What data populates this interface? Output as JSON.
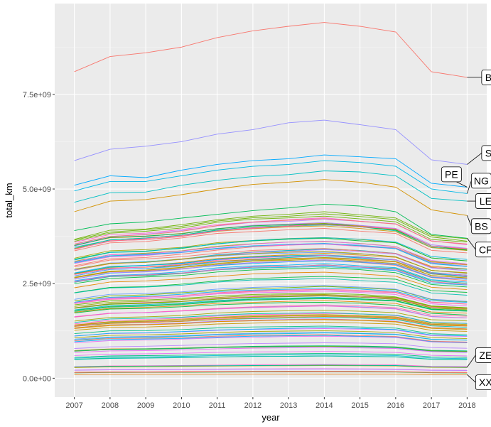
{
  "chart_data": {
    "type": "line",
    "title": "",
    "xlabel": "year",
    "ylabel": "total_km",
    "x": [
      2007,
      2008,
      2009,
      2010,
      2011,
      2012,
      2013,
      2014,
      2015,
      2016,
      2017,
      2018
    ],
    "x_ticks": [
      "2007",
      "2008",
      "2009",
      "2010",
      "2011",
      "2012",
      "2013",
      "2014",
      "2015",
      "2016",
      "2017",
      "2018"
    ],
    "y_ticks": [
      {
        "value": 0,
        "label": "0.0e+00"
      },
      {
        "value": 2500000000,
        "label": "2.5e+09"
      },
      {
        "value": 5000000000,
        "label": "5.0e+09"
      },
      {
        "value": 7500000000,
        "label": "7.5e+09"
      }
    ],
    "xlim": [
      2006.45,
      2018.55
    ],
    "ylim": [
      -500000000,
      9900000000
    ],
    "grid": true,
    "legend": "none",
    "labeled_series": [
      {
        "name": "B",
        "color": "#f8766d",
        "values": [
          8100000000,
          8500000000,
          8600000000,
          8750000000,
          9000000000,
          9180000000,
          9300000000,
          9400000000,
          9300000000,
          9150000000,
          8100000000,
          7950000000
        ]
      },
      {
        "name": "S",
        "color": "#9590ff",
        "values": [
          5750000000,
          6050000000,
          6130000000,
          6250000000,
          6450000000,
          6570000000,
          6750000000,
          6820000000,
          6700000000,
          6570000000,
          5770000000,
          5650000000
        ]
      },
      {
        "name": "PE",
        "color": "#00a9ff",
        "values": [
          5100000000,
          5350000000,
          5300000000,
          5500000000,
          5650000000,
          5750000000,
          5800000000,
          5900000000,
          5850000000,
          5800000000,
          5150000000,
          5050000000
        ]
      },
      {
        "name": "NG",
        "color": "#00b8e7",
        "values": [
          4950000000,
          5200000000,
          5200000000,
          5350000000,
          5500000000,
          5600000000,
          5650000000,
          5750000000,
          5700000000,
          5600000000,
          5000000000,
          4880000000
        ]
      },
      {
        "name": "LE",
        "color": "#00bfc4",
        "values": [
          4650000000,
          4900000000,
          4920000000,
          5100000000,
          5230000000,
          5330000000,
          5380000000,
          5480000000,
          5450000000,
          5350000000,
          4750000000,
          4680000000
        ]
      },
      {
        "name": "BS",
        "color": "#d39200",
        "values": [
          4400000000,
          4680000000,
          4720000000,
          4850000000,
          5000000000,
          5120000000,
          5180000000,
          5250000000,
          5180000000,
          5050000000,
          4450000000,
          4300000000
        ]
      },
      {
        "name": "CF",
        "color": "#00bc56",
        "values": [
          3900000000,
          4080000000,
          4130000000,
          4230000000,
          4330000000,
          4430000000,
          4500000000,
          4600000000,
          4550000000,
          4400000000,
          3800000000,
          3700000000
        ]
      },
      {
        "name": "ZE",
        "color": "#00c19a",
        "values": [
          300000000,
          315000000,
          320000000,
          325000000,
          330000000,
          335000000,
          340000000,
          345000000,
          340000000,
          335000000,
          300000000,
          290000000
        ]
      },
      {
        "name": "XX",
        "color": "#e7861b",
        "values": [
          100000000,
          102000000,
          104000000,
          105000000,
          107000000,
          108000000,
          109000000,
          110000000,
          109000000,
          108000000,
          100000000,
          98000000
        ]
      }
    ],
    "background_series": {
      "count": 110,
      "profile": [
        0.83,
        0.88,
        0.89,
        0.91,
        0.94,
        0.96,
        0.97,
        0.98,
        0.965,
        0.945,
        0.84,
        0.82
      ],
      "level_range": [
        150000000,
        4500000000
      ],
      "palette": [
        "#f8766d",
        "#e58700",
        "#c99800",
        "#a3a500",
        "#6bb100",
        "#00ba38",
        "#00bf7d",
        "#00c0af",
        "#00bcd8",
        "#00b0f6",
        "#619cff",
        "#b983ff",
        "#e76bf3",
        "#fd61d1",
        "#ff67a4"
      ]
    }
  }
}
